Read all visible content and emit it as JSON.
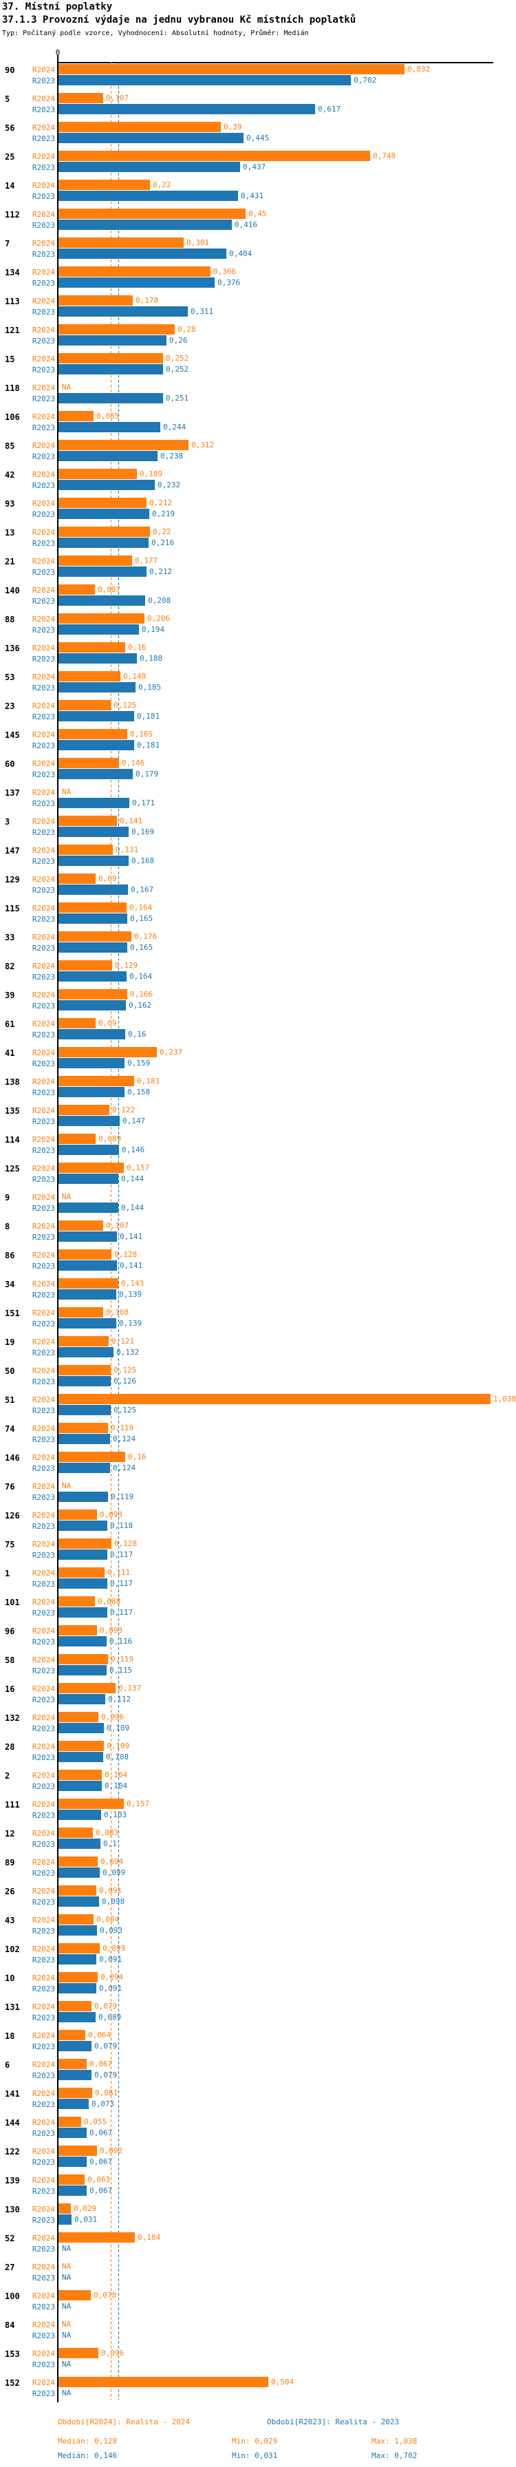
{
  "header": {
    "title": "37. Místní poplatky",
    "subtitle": "37.1.3 Provozní výdaje na jednu vybranou Kč místních poplatků",
    "meta": "Typ: Počítaný podle vzorce, Vyhodnocení: Absolutní hodnoty, Průměr: Medián"
  },
  "colors": {
    "r2024": "#ff7f0e",
    "r2023": "#1f77b4",
    "axis": "#000000"
  },
  "footer": {
    "legend_r2024": "Období[R2024]: Realita - 2024",
    "legend_r2023": "Období[R2023]: Realita - 2023",
    "r2024_median": "Medián: 0,128",
    "r2024_min": "Min: 0,029",
    "r2024_max": "Max: 1,038",
    "r2023_median": "Medián: 0,146",
    "r2023_min": "Min: 0,031",
    "r2023_max": "Max: 0,702"
  },
  "chart_data": {
    "type": "bar",
    "orientation": "horizontal",
    "title": "37.1.3 Provozní výdaje na jednu vybranou Kč místních poplatků",
    "xlabel": "",
    "ylabel": "",
    "xlim": [
      0,
      1.05
    ],
    "zero_tick_label": "0",
    "grid": false,
    "legend_position": "bottom",
    "series_names": [
      "R2024",
      "R2023"
    ],
    "na_text": "NA",
    "reference_lines": [
      {
        "series": "R2024",
        "label": "Medián",
        "value": 0.128
      },
      {
        "series": "R2023",
        "label": "Medián",
        "value": 0.146
      }
    ],
    "stats": {
      "r2024": {
        "median": 0.128,
        "min": 0.029,
        "max": 1.038
      },
      "r2023": {
        "median": 0.146,
        "min": 0.031,
        "max": 0.702
      }
    },
    "groups": [
      {
        "id": "90",
        "v24": 0.832,
        "d24": "0,832",
        "v23": 0.702,
        "d23": "0,702"
      },
      {
        "id": "5",
        "v24": 0.107,
        "d24": "0,107",
        "v23": 0.617,
        "d23": "0,617"
      },
      {
        "id": "56",
        "v24": 0.39,
        "d24": "0,39",
        "v23": 0.445,
        "d23": "0,445"
      },
      {
        "id": "25",
        "v24": 0.748,
        "d24": "0,748",
        "v23": 0.437,
        "d23": "0,437"
      },
      {
        "id": "14",
        "v24": 0.22,
        "d24": "0,22",
        "v23": 0.431,
        "d23": "0,431"
      },
      {
        "id": "112",
        "v24": 0.45,
        "d24": "0,45",
        "v23": 0.416,
        "d23": "0,416"
      },
      {
        "id": "7",
        "v24": 0.301,
        "d24": "0,301",
        "v23": 0.404,
        "d23": "0,404"
      },
      {
        "id": "134",
        "v24": 0.366,
        "d24": "0,366",
        "v23": 0.376,
        "d23": "0,376"
      },
      {
        "id": "113",
        "v24": 0.178,
        "d24": "0,178",
        "v23": 0.311,
        "d23": "0,311"
      },
      {
        "id": "121",
        "v24": 0.28,
        "d24": "0,28",
        "v23": 0.26,
        "d23": "0,26"
      },
      {
        "id": "15",
        "v24": 0.252,
        "d24": "0,252",
        "v23": 0.252,
        "d23": "0,252"
      },
      {
        "id": "118",
        "v24": null,
        "d24": "NA",
        "v23": 0.251,
        "d23": "0,251"
      },
      {
        "id": "106",
        "v24": 0.085,
        "d24": "0,085",
        "v23": 0.244,
        "d23": "0,244"
      },
      {
        "id": "85",
        "v24": 0.312,
        "d24": "0,312",
        "v23": 0.238,
        "d23": "0,238"
      },
      {
        "id": "42",
        "v24": 0.189,
        "d24": "0,189",
        "v23": 0.232,
        "d23": "0,232"
      },
      {
        "id": "93",
        "v24": 0.212,
        "d24": "0,212",
        "v23": 0.219,
        "d23": "0,219"
      },
      {
        "id": "13",
        "v24": 0.22,
        "d24": "0,22",
        "v23": 0.216,
        "d23": "0,216"
      },
      {
        "id": "21",
        "v24": 0.177,
        "d24": "0,177",
        "v23": 0.212,
        "d23": "0,212"
      },
      {
        "id": "140",
        "v24": 0.087,
        "d24": "0,087",
        "v23": 0.208,
        "d23": "0,208"
      },
      {
        "id": "88",
        "v24": 0.206,
        "d24": "0,206",
        "v23": 0.194,
        "d23": "0,194"
      },
      {
        "id": "136",
        "v24": 0.16,
        "d24": "0,16",
        "v23": 0.188,
        "d23": "0,188"
      },
      {
        "id": "53",
        "v24": 0.148,
        "d24": "0,148",
        "v23": 0.185,
        "d23": "0,185"
      },
      {
        "id": "23",
        "v24": 0.125,
        "d24": "0,125",
        "v23": 0.181,
        "d23": "0,181"
      },
      {
        "id": "145",
        "v24": 0.165,
        "d24": "0,165",
        "v23": 0.181,
        "d23": "0,181"
      },
      {
        "id": "60",
        "v24": 0.146,
        "d24": "0,146",
        "v23": 0.179,
        "d23": "0,179"
      },
      {
        "id": "137",
        "v24": null,
        "d24": "NA",
        "v23": 0.171,
        "d23": "0,171"
      },
      {
        "id": "3",
        "v24": 0.141,
        "d24": "0,141",
        "v23": 0.169,
        "d23": "0,169"
      },
      {
        "id": "147",
        "v24": 0.131,
        "d24": "0,131",
        "v23": 0.168,
        "d23": "0,168"
      },
      {
        "id": "129",
        "v24": 0.09,
        "d24": "0,09",
        "v23": 0.167,
        "d23": "0,167"
      },
      {
        "id": "115",
        "v24": 0.164,
        "d24": "0,164",
        "v23": 0.165,
        "d23": "0,165"
      },
      {
        "id": "33",
        "v24": 0.176,
        "d24": "0,176",
        "v23": 0.165,
        "d23": "0,165"
      },
      {
        "id": "82",
        "v24": 0.129,
        "d24": "0,129",
        "v23": 0.164,
        "d23": "0,164"
      },
      {
        "id": "39",
        "v24": 0.166,
        "d24": "0,166",
        "v23": 0.162,
        "d23": "0,162"
      },
      {
        "id": "61",
        "v24": 0.09,
        "d24": "0,09",
        "v23": 0.16,
        "d23": "0,16"
      },
      {
        "id": "41",
        "v24": 0.237,
        "d24": "0,237",
        "v23": 0.159,
        "d23": "0,159"
      },
      {
        "id": "138",
        "v24": 0.181,
        "d24": "0,181",
        "v23": 0.158,
        "d23": "0,158"
      },
      {
        "id": "135",
        "v24": 0.122,
        "d24": "0,122",
        "v23": 0.147,
        "d23": "0,147"
      },
      {
        "id": "114",
        "v24": 0.089,
        "d24": "0,089",
        "v23": 0.146,
        "d23": "0,146"
      },
      {
        "id": "125",
        "v24": 0.157,
        "d24": "0,157",
        "v23": 0.144,
        "d23": "0,144"
      },
      {
        "id": "9",
        "v24": null,
        "d24": "NA",
        "v23": 0.144,
        "d23": "0,144"
      },
      {
        "id": "8",
        "v24": 0.107,
        "d24": "0,107",
        "v23": 0.141,
        "d23": "0,141"
      },
      {
        "id": "86",
        "v24": 0.128,
        "d24": "0,128",
        "v23": 0.141,
        "d23": "0,141"
      },
      {
        "id": "34",
        "v24": 0.143,
        "d24": "0,143",
        "v23": 0.139,
        "d23": "0,139"
      },
      {
        "id": "151",
        "v24": 0.108,
        "d24": "0,108",
        "v23": 0.139,
        "d23": "0,139"
      },
      {
        "id": "19",
        "v24": 0.121,
        "d24": "0,121",
        "v23": 0.132,
        "d23": "0,132"
      },
      {
        "id": "50",
        "v24": 0.125,
        "d24": "0,125",
        "v23": 0.126,
        "d23": "0,126"
      },
      {
        "id": "51",
        "v24": 1.038,
        "d24": "1,038",
        "v23": 0.125,
        "d23": "0,125"
      },
      {
        "id": "74",
        "v24": 0.119,
        "d24": "0,119",
        "v23": 0.124,
        "d23": "0,124"
      },
      {
        "id": "146",
        "v24": 0.16,
        "d24": "0,16",
        "v23": 0.124,
        "d23": "0,124"
      },
      {
        "id": "76",
        "v24": null,
        "d24": "NA",
        "v23": 0.119,
        "d23": "0,119"
      },
      {
        "id": "126",
        "v24": 0.093,
        "d24": "0,093",
        "v23": 0.118,
        "d23": "0,118"
      },
      {
        "id": "75",
        "v24": 0.128,
        "d24": "0,128",
        "v23": 0.117,
        "d23": "0,117"
      },
      {
        "id": "1",
        "v24": 0.111,
        "d24": "0,111",
        "v23": 0.117,
        "d23": "0,117"
      },
      {
        "id": "101",
        "v24": 0.088,
        "d24": "0,088",
        "v23": 0.117,
        "d23": "0,117"
      },
      {
        "id": "96",
        "v24": 0.093,
        "d24": "0,093",
        "v23": 0.116,
        "d23": "0,116"
      },
      {
        "id": "58",
        "v24": 0.119,
        "d24": "0,119",
        "v23": 0.115,
        "d23": "0,115"
      },
      {
        "id": "16",
        "v24": 0.137,
        "d24": "0,137",
        "v23": 0.112,
        "d23": "0,112"
      },
      {
        "id": "132",
        "v24": 0.096,
        "d24": "0,096",
        "v23": 0.109,
        "d23": "0,109"
      },
      {
        "id": "28",
        "v24": 0.109,
        "d24": "0,109",
        "v23": 0.108,
        "d23": "0,108"
      },
      {
        "id": "2",
        "v24": 0.104,
        "d24": "0,104",
        "v23": 0.104,
        "d23": "0,104"
      },
      {
        "id": "111",
        "v24": 0.157,
        "d24": "0,157",
        "v23": 0.103,
        "d23": "0,103"
      },
      {
        "id": "12",
        "v24": 0.083,
        "d24": "0,083",
        "v23": 0.1,
        "d23": "0,1"
      },
      {
        "id": "89",
        "v24": 0.094,
        "d24": "0,094",
        "v23": 0.099,
        "d23": "0,099"
      },
      {
        "id": "26",
        "v24": 0.091,
        "d24": "0,091",
        "v23": 0.098,
        "d23": "0,098"
      },
      {
        "id": "43",
        "v24": 0.084,
        "d24": "0,084",
        "v23": 0.093,
        "d23": "0,093"
      },
      {
        "id": "102",
        "v24": 0.099,
        "d24": "0,099",
        "v23": 0.091,
        "d23": "0,091"
      },
      {
        "id": "10",
        "v24": 0.094,
        "d24": "0,094",
        "v23": 0.091,
        "d23": "0,091"
      },
      {
        "id": "131",
        "v24": 0.079,
        "d24": "0,079",
        "v23": 0.089,
        "d23": "0,089"
      },
      {
        "id": "18",
        "v24": 0.064,
        "d24": "0,064",
        "v23": 0.079,
        "d23": "0,079"
      },
      {
        "id": "6",
        "v24": 0.067,
        "d24": "0,067",
        "v23": 0.079,
        "d23": "0,079"
      },
      {
        "id": "141",
        "v24": 0.081,
        "d24": "0,081",
        "v23": 0.073,
        "d23": "0,073"
      },
      {
        "id": "144",
        "v24": 0.055,
        "d24": "0,055",
        "v23": 0.067,
        "d23": "0,067"
      },
      {
        "id": "122",
        "v24": 0.092,
        "d24": "0,092",
        "v23": 0.067,
        "d23": "0,067"
      },
      {
        "id": "139",
        "v24": 0.063,
        "d24": "0,063",
        "v23": 0.067,
        "d23": "0,067"
      },
      {
        "id": "130",
        "v24": 0.029,
        "d24": "0,029",
        "v23": 0.031,
        "d23": "0,031"
      },
      {
        "id": "52",
        "v24": 0.184,
        "d24": "0,184",
        "v23": null,
        "d23": "NA"
      },
      {
        "id": "27",
        "v24": null,
        "d24": "NA",
        "v23": null,
        "d23": "NA"
      },
      {
        "id": "100",
        "v24": 0.078,
        "d24": "0,078",
        "v23": null,
        "d23": "NA"
      },
      {
        "id": "84",
        "v24": null,
        "d24": "NA",
        "v23": null,
        "d23": "NA"
      },
      {
        "id": "153",
        "v24": 0.096,
        "d24": "0,096",
        "v23": null,
        "d23": "NA"
      },
      {
        "id": "152",
        "v24": 0.504,
        "d24": "0,504",
        "v23": null,
        "d23": "NA"
      }
    ]
  }
}
